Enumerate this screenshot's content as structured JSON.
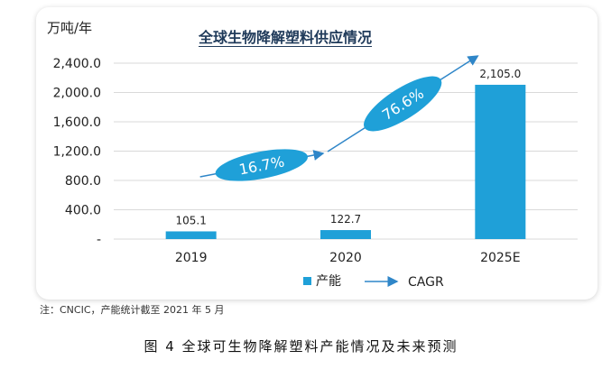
{
  "chart_data": {
    "type": "bar",
    "title": "全球生物降解塑料供应情况",
    "unit_label": "万吨/年",
    "categories": [
      "2019",
      "2020",
      "2025E"
    ],
    "series": [
      {
        "name": "产能",
        "values": [
          105.1,
          122.7,
          2105.0
        ],
        "labels": [
          "105.1",
          "122.7",
          "2,105.0"
        ],
        "color": "#1fa0d8"
      }
    ],
    "yticks": [
      0,
      400,
      800,
      1200,
      1600,
      2000,
      2400
    ],
    "ytick_labels": [
      "-",
      "400.0",
      "800.0",
      "1,200.0",
      "1,600.0",
      "2,000.0",
      "2,400.0"
    ],
    "ylim": [
      0,
      2400
    ],
    "grid": true,
    "cagr": [
      {
        "from": "2019",
        "to": "2020",
        "label": "16.7%"
      },
      {
        "from": "2020",
        "to": "2025E",
        "label": "76.6%"
      }
    ],
    "legend": {
      "bar_label": "产能",
      "arrow_label": "CAGR",
      "position": "bottom"
    }
  },
  "note": "注：CNCIC，产能统计截至 2021 年 5 月",
  "caption": "图 4  全球可生物降解塑料产能情况及未来预测",
  "colors": {
    "bar": "#1fa0d8",
    "ellipse": "#1fa0d8",
    "arrow": "#2f86c8",
    "grid": "#d9d9d9"
  }
}
